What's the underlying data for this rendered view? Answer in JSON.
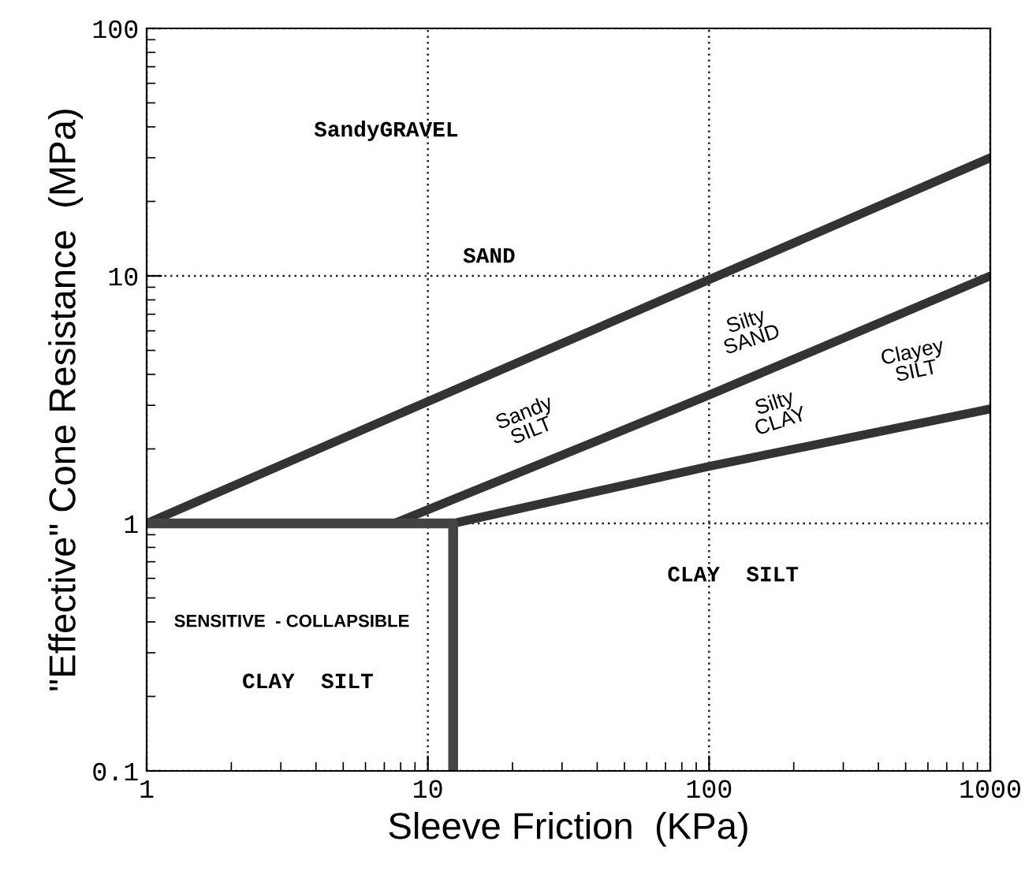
{
  "chart_data": {
    "type": "line",
    "xlabel": "Sleeve Friction  (KPa)",
    "ylabel": "\"Effective\" Cone Resistance  (MPa)",
    "log": "xy",
    "grid": true,
    "line_style": "solid",
    "marker": "none",
    "xlim": [
      1,
      1000
    ],
    "ylim": [
      0.1,
      100
    ],
    "xticks": [
      1,
      10,
      100,
      1000
    ],
    "yticks": [
      0.1,
      1,
      10,
      100
    ],
    "series": [
      {
        "color": "#333333",
        "x": [
          1,
          1000
        ],
        "values": [
          1,
          30
        ]
      },
      {
        "color": "#333333",
        "x": [
          7.6,
          100,
          1000
        ],
        "values": [
          1,
          3.3,
          10
        ]
      },
      {
        "color": "#333333",
        "x": [
          12.3,
          100,
          1000
        ],
        "values": [
          1,
          1.7,
          2.9
        ]
      },
      {
        "color": "#444444",
        "x": [
          1,
          12.3
        ],
        "values": [
          1,
          1
        ]
      },
      {
        "color": "#444444",
        "x": [
          12.3,
          12.3
        ],
        "values": [
          0.1,
          1
        ]
      }
    ],
    "annotations": [
      "SandyGRAVEL",
      "SAND",
      "Sandy\nSILT",
      "Silty\nSAND",
      "Silty\nCLAY",
      "Clayey\nSILT",
      "CLAY  SILT",
      "SENSITIVE  - COLLAPSIBLE",
      "CLAY  SILT"
    ]
  }
}
